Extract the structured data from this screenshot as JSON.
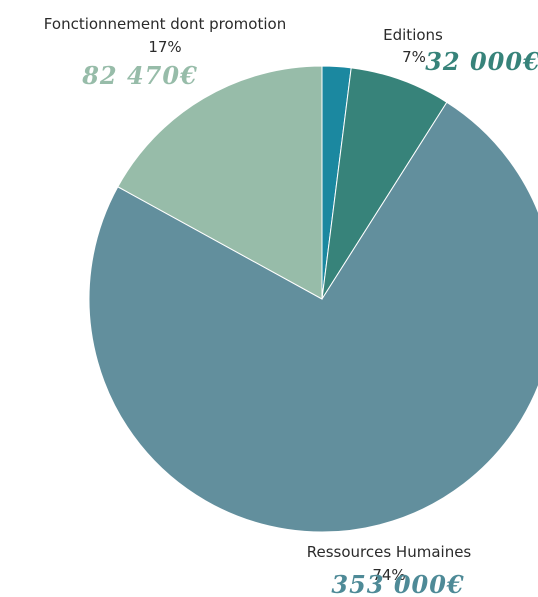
{
  "chart_data": {
    "type": "pie",
    "slices": [
      {
        "label": "",
        "percent": "",
        "amount": "",
        "value": 2,
        "color": "#1b88a0"
      },
      {
        "label": "Editions",
        "percent": "7%",
        "amount": "32 000€",
        "value": 7,
        "color": "#37837a"
      },
      {
        "label": "Ressources Humaines",
        "percent": "74%",
        "amount": "353 000€",
        "value": 74,
        "color": "#628f9d"
      },
      {
        "label": "Fonctionnement dont promotion",
        "percent": "17%",
        "amount": "82 470€",
        "value": 17,
        "color": "#97bca9"
      }
    ],
    "colors": {
      "editions_amount": "#37837a",
      "rh_amount": "#4e8a97",
      "fonctionnement_amount": "#97bca9"
    }
  }
}
